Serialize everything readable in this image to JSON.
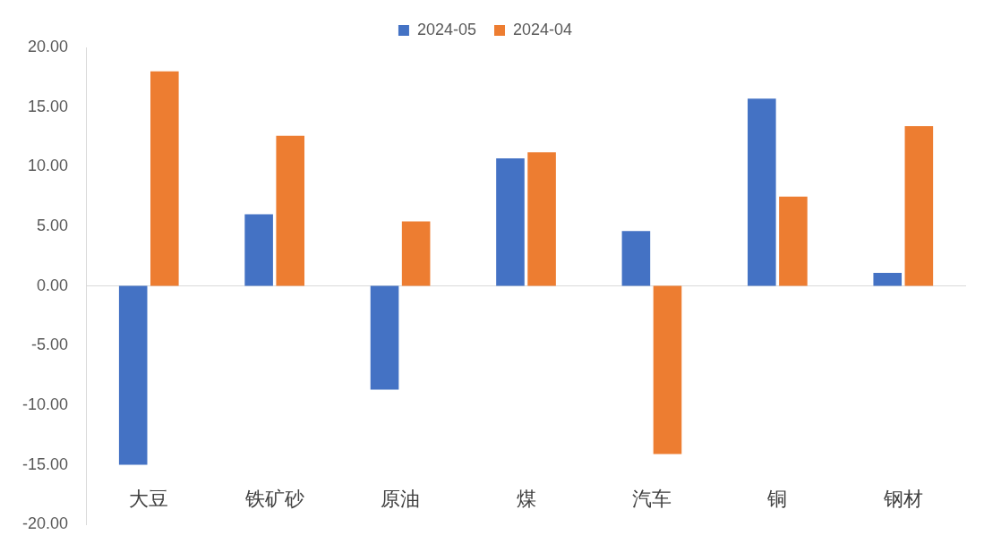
{
  "chart_data": {
    "type": "bar",
    "categories": [
      "大豆",
      "铁矿砂",
      "原油",
      "煤",
      "汽车",
      "铜",
      "钢材"
    ],
    "series": [
      {
        "name": "2024-05",
        "color": "#4472c4",
        "values": [
          -15.0,
          6.0,
          -8.7,
          10.7,
          4.6,
          15.7,
          1.1
        ]
      },
      {
        "name": "2024-04",
        "color": "#ed7d31",
        "values": [
          18.0,
          12.6,
          5.4,
          11.2,
          -14.1,
          7.5,
          13.4
        ]
      }
    ],
    "ylim": [
      -20,
      20
    ],
    "yticks": [
      {
        "value": -20,
        "label": "-20.00"
      },
      {
        "value": -15,
        "label": "-15.00"
      },
      {
        "value": -10,
        "label": "-10.00"
      },
      {
        "value": -5,
        "label": "-5.00"
      },
      {
        "value": 0,
        "label": "0.00"
      },
      {
        "value": 5,
        "label": "5.00"
      },
      {
        "value": 10,
        "label": "10.00"
      },
      {
        "value": 15,
        "label": "15.00"
      },
      {
        "value": 20,
        "label": "20.00"
      }
    ],
    "ref_lines": [
      {
        "axis": "y",
        "value": 0,
        "color": "#d9d9d9"
      }
    ],
    "grid": false,
    "legend": "top"
  }
}
